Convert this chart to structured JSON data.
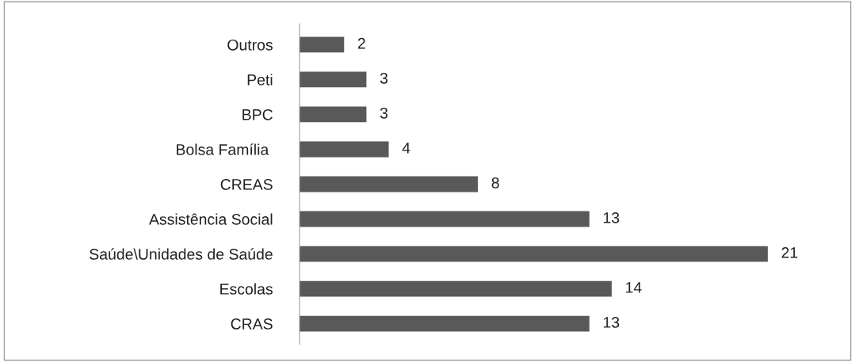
{
  "chart_data": {
    "type": "bar",
    "orientation": "horizontal",
    "categories": [
      "Outros",
      "Peti",
      "BPC",
      "Bolsa Família ",
      "CREAS",
      "Assistência Social",
      "Saúde\\Unidades de Saúde",
      "Escolas",
      "CRAS"
    ],
    "values": [
      2,
      3,
      3,
      4,
      8,
      13,
      21,
      14,
      13
    ],
    "color": "#595959",
    "data_labels": true,
    "grid": false,
    "legend": false
  }
}
